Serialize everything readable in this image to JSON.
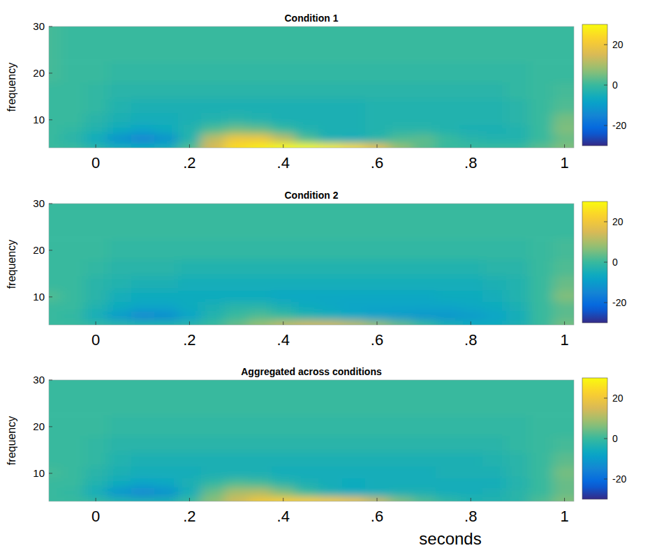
{
  "chart_data": [
    {
      "type": "heatmap",
      "title": "Condition 1",
      "ylabel": "frequency",
      "xlim": [
        -0.1,
        1.02
      ],
      "ylim": [
        4,
        30
      ],
      "xticks": [
        0,
        {
          "value": 0.2,
          "label": ".2"
        },
        {
          "value": 0.4,
          "label": ".4"
        },
        {
          "value": 0.6,
          "label": ".6"
        },
        {
          "value": 0.8,
          "label": ".8"
        },
        1
      ],
      "yticks": [
        10,
        20,
        30
      ],
      "times": [
        -0.1,
        -0.05,
        0,
        0.05,
        0.1,
        0.15,
        0.2,
        0.25,
        0.3,
        0.35,
        0.4,
        0.45,
        0.5,
        0.55,
        0.6,
        0.65,
        0.7,
        0.75,
        0.8,
        0.85,
        0.9,
        0.95,
        1.0
      ],
      "frequencies": [
        4,
        6,
        8,
        10,
        13,
        16,
        20,
        25,
        30
      ],
      "cells": [
        [
          0,
          0,
          -2,
          -5,
          -6,
          -5,
          2,
          15,
          25,
          28,
          30,
          30,
          28,
          25,
          18,
          8,
          3,
          0,
          0,
          0,
          0,
          3,
          6
        ],
        [
          0,
          -2,
          -6,
          -12,
          -15,
          -12,
          -3,
          12,
          20,
          20,
          12,
          2,
          -4,
          -5,
          -2,
          2,
          3,
          0,
          -2,
          -3,
          -3,
          0,
          4
        ],
        [
          0,
          -1,
          -3,
          -6,
          -8,
          -6,
          -3,
          2,
          5,
          4,
          0,
          -3,
          -4,
          -4,
          -3,
          -2,
          -2,
          -3,
          -4,
          -4,
          -3,
          0,
          6
        ],
        [
          0,
          0,
          -2,
          -4,
          -5,
          -5,
          -4,
          -3,
          -2,
          -3,
          -4,
          -4,
          -4,
          -4,
          -3,
          -3,
          -3,
          -3,
          -3,
          -3,
          -2,
          0,
          5
        ],
        [
          0,
          0,
          -1,
          -3,
          -4,
          -4,
          -4,
          -4,
          -4,
          -4,
          -4,
          -4,
          -4,
          -4,
          -3,
          -3,
          -3,
          -3,
          -3,
          -3,
          -2,
          0,
          2
        ],
        [
          0,
          0,
          -1,
          -2,
          -2,
          -2,
          -2,
          -2,
          -2,
          -2,
          -2,
          -2,
          -2,
          -2,
          -2,
          -2,
          -2,
          -2,
          -2,
          -2,
          -1,
          0,
          1
        ],
        [
          1,
          0,
          0,
          -1,
          -1,
          -1,
          -1,
          -1,
          -1,
          -1,
          -1,
          -1,
          -1,
          -1,
          -1,
          -1,
          -1,
          -1,
          -1,
          -1,
          -1,
          0,
          0
        ],
        [
          1,
          0,
          0,
          0,
          0,
          0,
          0,
          0,
          0,
          0,
          0,
          0,
          0,
          0,
          0,
          0,
          0,
          0,
          0,
          0,
          0,
          0,
          0
        ],
        [
          1,
          0,
          0,
          0,
          0,
          0,
          0,
          0,
          0,
          0,
          0,
          0,
          0,
          0,
          0,
          0,
          0,
          0,
          0,
          0,
          0,
          0,
          0
        ]
      ],
      "colorbar_lim": [
        -30,
        30
      ],
      "colorbar_ticks": [
        -20,
        0,
        20
      ]
    },
    {
      "type": "heatmap",
      "title": "Condition 2",
      "ylabel": "frequency",
      "xlim": [
        -0.1,
        1.02
      ],
      "ylim": [
        4,
        30
      ],
      "xticks": [
        0,
        {
          "value": 0.2,
          "label": ".2"
        },
        {
          "value": 0.4,
          "label": ".4"
        },
        {
          "value": 0.6,
          "label": ".6"
        },
        {
          "value": 0.8,
          "label": ".8"
        },
        1
      ],
      "yticks": [
        10,
        20,
        30
      ],
      "times": [
        -0.1,
        -0.05,
        0,
        0.05,
        0.1,
        0.15,
        0.2,
        0.25,
        0.3,
        0.35,
        0.4,
        0.45,
        0.5,
        0.55,
        0.6,
        0.65,
        0.7,
        0.75,
        0.8,
        0.85,
        0.9,
        0.95,
        1.0
      ],
      "frequencies": [
        4,
        6,
        8,
        10,
        13,
        16,
        20,
        25,
        30
      ],
      "cells": [
        [
          0,
          0,
          -1,
          -2,
          -3,
          -3,
          -2,
          0,
          4,
          8,
          12,
          14,
          14,
          12,
          8,
          4,
          0,
          -4,
          -6,
          -6,
          -4,
          0,
          5
        ],
        [
          0,
          -1,
          -5,
          -10,
          -14,
          -13,
          -8,
          -3,
          0,
          2,
          0,
          -3,
          -5,
          -7,
          -9,
          -10,
          -11,
          -11,
          -10,
          -8,
          -5,
          0,
          3
        ],
        [
          0,
          0,
          -3,
          -6,
          -8,
          -8,
          -6,
          -4,
          -2,
          -2,
          -4,
          -6,
          -7,
          -8,
          -8,
          -8,
          -8,
          -8,
          -7,
          -6,
          -4,
          0,
          3
        ],
        [
          2,
          0,
          -2,
          -5,
          -6,
          -6,
          -6,
          -6,
          -6,
          -6,
          -7,
          -7,
          -7,
          -7,
          -7,
          -7,
          -7,
          -6,
          -6,
          -5,
          -3,
          0,
          6
        ],
        [
          0,
          0,
          -2,
          -3,
          -4,
          -4,
          -5,
          -5,
          -5,
          -5,
          -5,
          -5,
          -5,
          -5,
          -5,
          -5,
          -5,
          -5,
          -5,
          -4,
          -3,
          0,
          4
        ],
        [
          0,
          0,
          -1,
          -2,
          -2,
          -2,
          -3,
          -3,
          -3,
          -3,
          -3,
          -3,
          -3,
          -3,
          -3,
          -3,
          -3,
          -3,
          -3,
          -2,
          -2,
          0,
          2
        ],
        [
          0,
          0,
          0,
          -1,
          -1,
          -1,
          -1,
          -1,
          -1,
          -1,
          -1,
          -1,
          -1,
          -1,
          -1,
          -1,
          -1,
          -1,
          -1,
          -1,
          -1,
          0,
          1
        ],
        [
          0,
          0,
          0,
          0,
          0,
          0,
          0,
          0,
          0,
          0,
          0,
          0,
          0,
          0,
          0,
          0,
          0,
          0,
          0,
          0,
          0,
          0,
          0
        ],
        [
          0,
          0,
          0,
          0,
          0,
          0,
          0,
          0,
          0,
          0,
          0,
          0,
          0,
          0,
          0,
          0,
          0,
          0,
          0,
          0,
          0,
          0,
          0
        ]
      ],
      "colorbar_lim": [
        -30,
        30
      ],
      "colorbar_ticks": [
        -20,
        0,
        20
      ]
    },
    {
      "type": "heatmap",
      "title": "Aggregated across conditions",
      "ylabel": "frequency",
      "xlabel": "seconds",
      "xlim": [
        -0.1,
        1.02
      ],
      "ylim": [
        4,
        30
      ],
      "xticks": [
        0,
        {
          "value": 0.2,
          "label": ".2"
        },
        {
          "value": 0.4,
          "label": ".4"
        },
        {
          "value": 0.6,
          "label": ".6"
        },
        {
          "value": 0.8,
          "label": ".8"
        },
        1
      ],
      "yticks": [
        10,
        20,
        30
      ],
      "times": [
        -0.1,
        -0.05,
        0,
        0.05,
        0.1,
        0.15,
        0.2,
        0.25,
        0.3,
        0.35,
        0.4,
        0.45,
        0.5,
        0.55,
        0.6,
        0.65,
        0.7,
        0.75,
        0.8,
        0.85,
        0.9,
        0.95,
        1.0
      ],
      "frequencies": [
        4,
        6,
        8,
        10,
        13,
        16,
        20,
        25,
        30
      ],
      "cells": [
        [
          0,
          0,
          -1,
          -3,
          -4,
          -4,
          0,
          7,
          14,
          20,
          22,
          22,
          21,
          19,
          13,
          6,
          2,
          -1,
          -3,
          -3,
          -2,
          2,
          6
        ],
        [
          0,
          -1,
          -5,
          -11,
          -14,
          -12,
          -5,
          4,
          10,
          11,
          6,
          0,
          -4,
          -6,
          -5,
          -4,
          -4,
          -5,
          -5,
          -4,
          -2,
          0,
          4
        ],
        [
          0,
          0,
          -3,
          -6,
          -8,
          -7,
          -4,
          -1,
          2,
          1,
          -2,
          -4,
          -5,
          -6,
          -5,
          -5,
          -5,
          -5,
          -5,
          -5,
          -3,
          0,
          4
        ],
        [
          1,
          0,
          -2,
          -4,
          -5,
          -5,
          -5,
          -4,
          -4,
          -4,
          -5,
          -5,
          -5,
          -5,
          -5,
          -5,
          -5,
          -4,
          -4,
          -4,
          -2,
          0,
          5
        ],
        [
          0,
          0,
          -1,
          -3,
          -4,
          -4,
          -4,
          -4,
          -4,
          -4,
          -4,
          -4,
          -4,
          -4,
          -4,
          -4,
          -4,
          -4,
          -4,
          -3,
          -2,
          0,
          3
        ],
        [
          0,
          0,
          -1,
          -2,
          -2,
          -2,
          -2,
          -2,
          -2,
          -2,
          -2,
          -2,
          -2,
          -2,
          -2,
          -2,
          -2,
          -2,
          -2,
          -2,
          -1,
          0,
          1
        ],
        [
          0,
          0,
          0,
          -1,
          -1,
          -1,
          -1,
          -1,
          -1,
          -1,
          -1,
          -1,
          -1,
          -1,
          -1,
          -1,
          -1,
          -1,
          -1,
          -1,
          -1,
          0,
          0
        ],
        [
          0,
          0,
          0,
          0,
          0,
          0,
          0,
          0,
          0,
          0,
          0,
          0,
          0,
          0,
          0,
          0,
          0,
          0,
          0,
          0,
          0,
          0,
          0
        ],
        [
          0,
          0,
          0,
          0,
          0,
          0,
          0,
          0,
          0,
          0,
          0,
          0,
          0,
          0,
          0,
          0,
          0,
          0,
          0,
          0,
          0,
          0,
          0
        ]
      ],
      "colorbar_lim": [
        -30,
        30
      ],
      "colorbar_ticks": [
        -20,
        0,
        20
      ]
    }
  ]
}
